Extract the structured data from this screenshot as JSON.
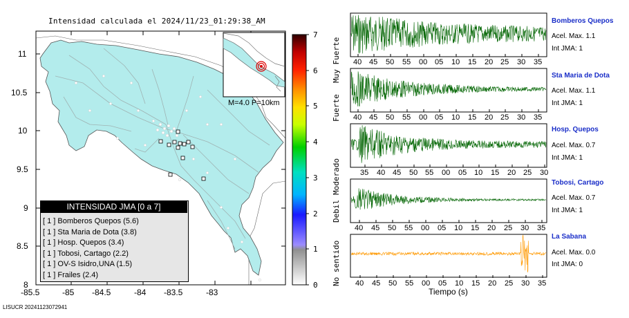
{
  "title": "Intensidad calculada el 2024/11/23_01:29:38_AM",
  "footer_id": "LISUCR 20241123072941",
  "map": {
    "lon_ticks": [
      "-85.5",
      "-85",
      "-84.5",
      "-84",
      "-83.5",
      "-83"
    ],
    "lat_ticks": [
      "11",
      "10.5",
      "10",
      "9.5",
      "9",
      "8.5",
      "8"
    ],
    "inset_label": "M=4.0 P=10km",
    "land_color": "#b3ecec"
  },
  "colorbar": {
    "ticks": [
      "0",
      "1",
      "2",
      "3",
      "4",
      "5",
      "6",
      "7"
    ],
    "labels": [
      "No sentido",
      "Debil",
      "Moderado",
      "Fuerte",
      "Muy Fuerte"
    ]
  },
  "legend": {
    "title": "INTENSIDAD JMA [0 a 7]",
    "items": [
      "[ 1 ]  Bomberos Quepos (5.6)",
      "[ 1 ]  Sta Maria de Dota (3.8)",
      "[ 1 ]  Hosp. Quepos (3.4)",
      "[ 1 ]  Tobosi, Cartago (2.2)",
      "[ 1 ]  OV-S Isidro,UNA (1.5)",
      "[ 1 ]  Frailes (2.4)"
    ]
  },
  "xlabel": "Tiempo (s)",
  "stations": [
    {
      "name": "Bomberos Quepos",
      "acel": "Acel. Max. 1.1",
      "jma": "Int JMA: 1",
      "color": "#006400",
      "ticks": [
        "40",
        "45",
        "50",
        "55",
        "00",
        "05",
        "10",
        "15",
        "20",
        "25",
        "30",
        "35"
      ]
    },
    {
      "name": "Sta Maria de Dota",
      "acel": "Acel. Max. 1.1",
      "jma": "Int JMA: 1",
      "color": "#006400",
      "ticks": [
        "40",
        "45",
        "50",
        "55",
        "00",
        "05",
        "10",
        "15",
        "20",
        "25",
        "30",
        "35"
      ]
    },
    {
      "name": "Hosp. Quepos",
      "acel": "Acel. Max. 0.7",
      "jma": "Int JMA: 1",
      "color": "#006400",
      "ticks": [
        "35",
        "40",
        "45",
        "50",
        "55",
        "00",
        "05",
        "10",
        "15",
        "20",
        "25",
        "30"
      ]
    },
    {
      "name": "Tobosi, Cartago",
      "acel": "Acel. Max. 0.7",
      "jma": "Int JMA: 1",
      "color": "#006400",
      "ticks": [
        "40",
        "45",
        "50",
        "55",
        "00",
        "05",
        "10",
        "15",
        "20",
        "25",
        "30",
        "35"
      ]
    },
    {
      "name": "La Sabana",
      "acel": "Acel. Max. 0.0",
      "jma": "Int JMA: 0",
      "color": "#ff9900",
      "ticks": [
        "40",
        "45",
        "50",
        "55",
        "00",
        "05",
        "10",
        "15",
        "20",
        "25",
        "30",
        "35"
      ]
    }
  ]
}
